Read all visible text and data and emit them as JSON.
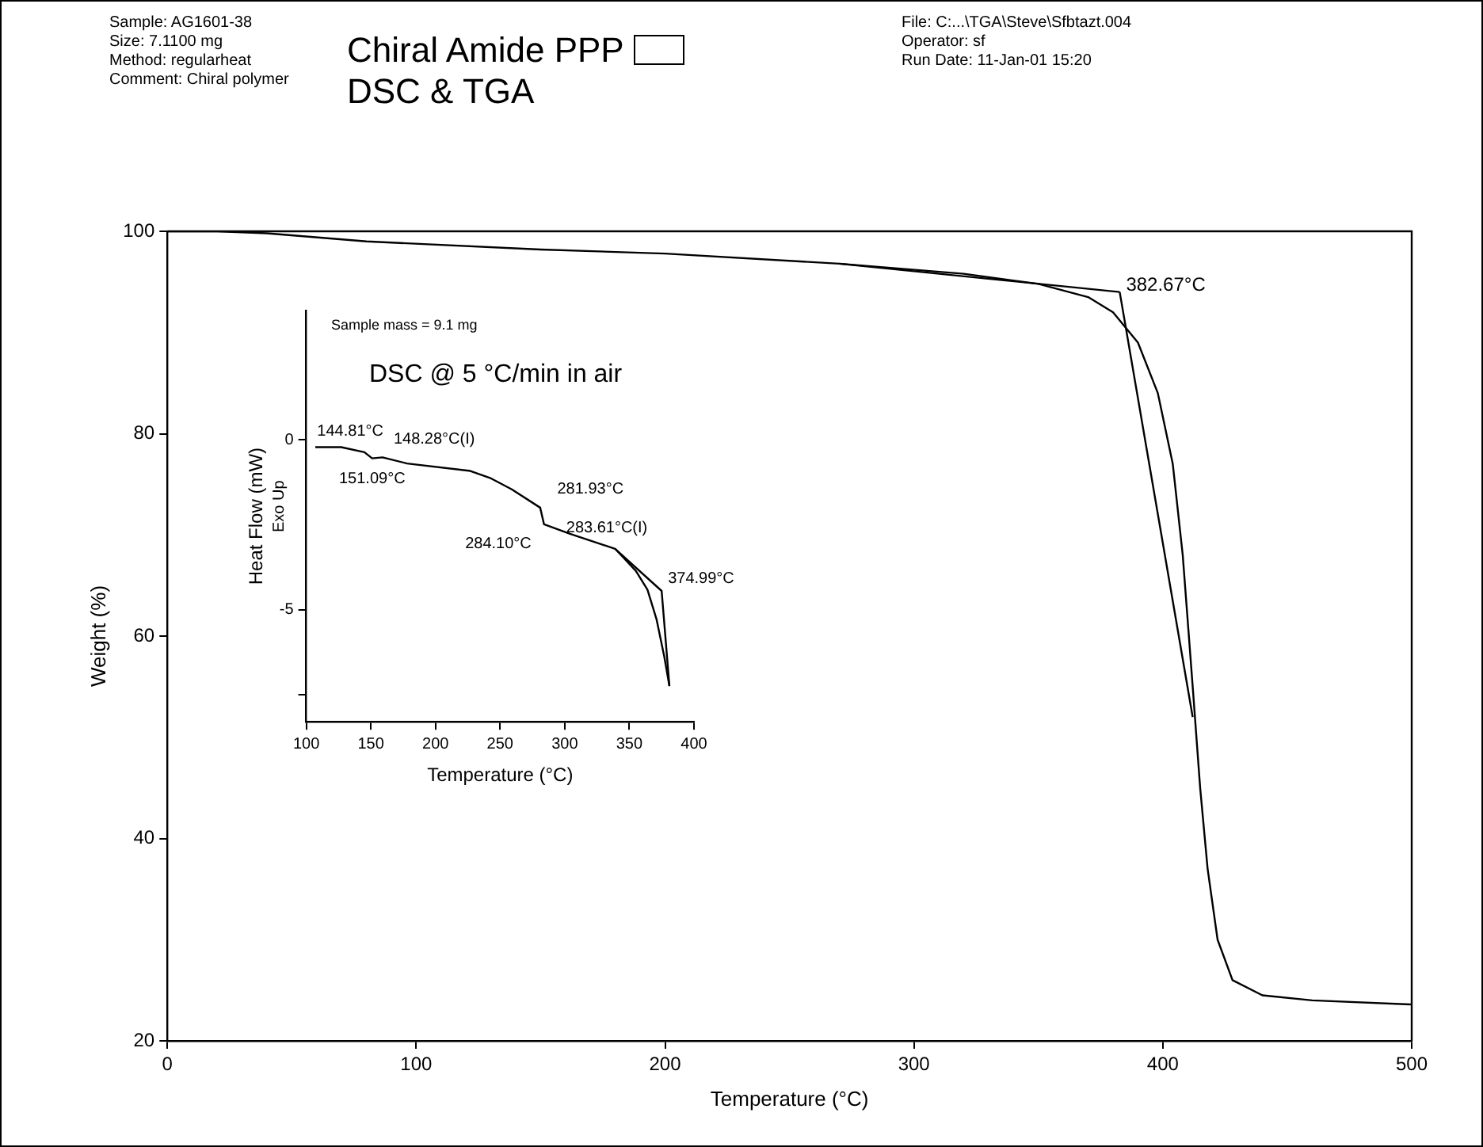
{
  "chart_data": [
    {
      "type": "line",
      "title": "Chiral Amide PPP",
      "subtitle": "DSC & TGA",
      "xlabel": "Temperature (°C)",
      "ylabel": "Weight (%)",
      "xlim": [
        0,
        500
      ],
      "ylim": [
        20,
        100
      ],
      "xticks": [
        0,
        100,
        200,
        300,
        400,
        500
      ],
      "yticks": [
        20,
        40,
        60,
        80,
        100
      ],
      "grid": false,
      "legend": false,
      "series": [
        {
          "color": "#000000",
          "x": [
            0,
            20,
            40,
            80,
            150,
            200,
            270,
            320,
            350,
            370,
            380,
            390,
            398,
            404,
            408,
            412,
            415,
            418,
            422,
            428,
            440,
            460,
            500
          ],
          "values": [
            100,
            100,
            99.8,
            99,
            98.2,
            97.8,
            96.8,
            95.8,
            94.8,
            93.5,
            92,
            89,
            84,
            77,
            68,
            55,
            45,
            37,
            30,
            26,
            24.5,
            24,
            23.6
          ]
        },
        {
          "color": "#000000",
          "x": [
            270,
            382.67
          ],
          "values": [
            96.8,
            94
          ]
        },
        {
          "color": "#000000",
          "x": [
            382.67,
            412
          ],
          "values": [
            94,
            52
          ]
        }
      ],
      "annotations": [
        "Sample: AG1601-38",
        "Size: 7.1100 mg",
        "Method: regularheat",
        "Comment: Chiral polymer",
        "File: C:...\\TGA\\Steve\\Sfbtazt.004",
        "Operator: sf",
        "Run Date: 11-Jan-01 15:20",
        {
          "text": "382.67°C",
          "x": 382.67,
          "y": 94
        }
      ]
    },
    {
      "type": "line",
      "xlabel": "Temperature (°C)",
      "ylabel": "Heat Flow (mW)",
      "xlim": [
        100,
        400
      ],
      "ylim": [
        -8.3,
        3.8
      ],
      "xticks": [
        100,
        150,
        200,
        250,
        300,
        350,
        400
      ],
      "yticks": [
        {
          "value": -7.5,
          "label": null
        },
        -5,
        0
      ],
      "grid": false,
      "legend": false,
      "series": [
        {
          "color": "#000000",
          "x": [
            107,
            127,
            145,
            151,
            159,
            178,
            227,
            243,
            259,
            281,
            284,
            304,
            339,
            355,
            364,
            371,
            377,
            381
          ],
          "values": [
            -0.22,
            -0.22,
            -0.37,
            -0.55,
            -0.52,
            -0.7,
            -0.92,
            -1.14,
            -1.46,
            -2.0,
            -2.49,
            -2.77,
            -3.21,
            -3.86,
            -4.41,
            -5.28,
            -6.38,
            -7.25
          ]
        },
        {
          "color": "#000000",
          "x": [
            339,
            374.99,
            381
          ],
          "values": [
            -3.21,
            -4.45,
            -7.25
          ]
        }
      ],
      "annotations": [
        "Sample mass = 9.1 mg",
        "DSC @ 5 °C/min in air",
        "Exo Up",
        {
          "text": "144.81°C",
          "x": 145,
          "y": -0.37
        },
        {
          "text": "148.28°C(I)",
          "x": 148,
          "y": -0.45
        },
        {
          "text": "151.09°C",
          "x": 151,
          "y": -0.55
        },
        {
          "text": "281.93°C",
          "x": 282,
          "y": -2.1
        },
        {
          "text": "283.61°C(I)",
          "x": 284,
          "y": -2.4
        },
        {
          "text": "284.10°C",
          "x": 284,
          "y": -2.5
        },
        {
          "text": "374.99°C",
          "x": 374.99,
          "y": -4.45
        }
      ]
    }
  ]
}
